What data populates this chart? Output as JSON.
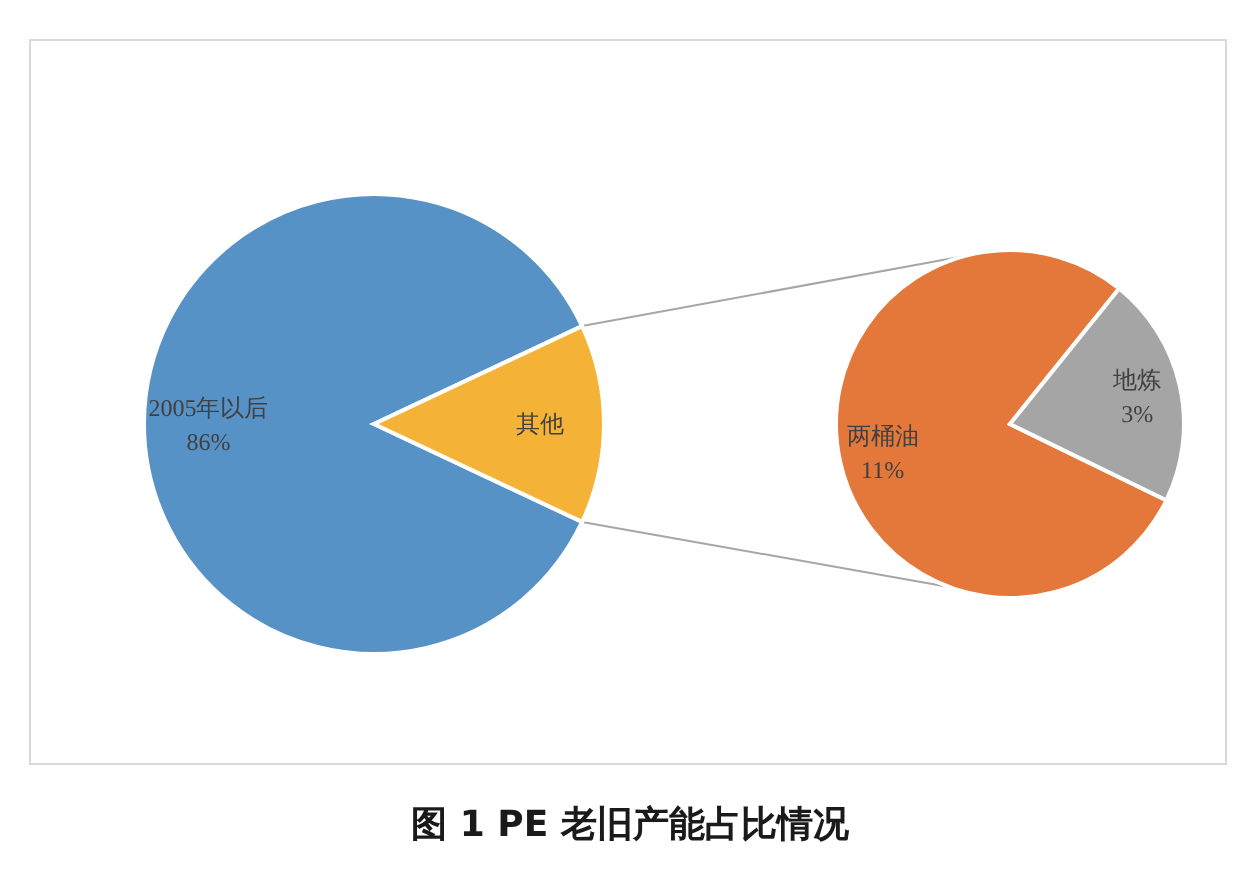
{
  "chart_data": [
    {
      "type": "pie",
      "title": "图 1 PE 老旧产能占比情况",
      "categories": [
        "2005年以后",
        "其他"
      ],
      "values": [
        86,
        14
      ],
      "colors": [
        "#5792c6",
        "#f4b337"
      ],
      "value_labels": [
        "86%",
        null
      ]
    },
    {
      "type": "pie",
      "categories": [
        "两桶油",
        "地炼"
      ],
      "values": [
        11,
        3
      ],
      "colors": [
        "#e4783b",
        "#a5a5a5"
      ],
      "value_labels": [
        "11%",
        "3%"
      ]
    }
  ]
}
